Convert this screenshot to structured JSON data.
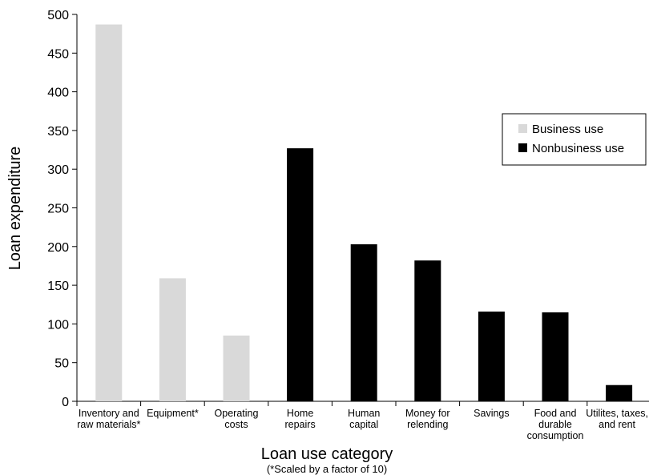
{
  "chart_data": {
    "type": "bar",
    "categories": [
      [
        "Inventory and",
        "raw materials*"
      ],
      [
        "Equipment*"
      ],
      [
        "Operating",
        "costs"
      ],
      [
        "Home",
        "repairs"
      ],
      [
        "Human",
        "capital"
      ],
      [
        "Money for",
        "relending"
      ],
      [
        "Savings"
      ],
      [
        "Food and",
        "durable",
        "consumption"
      ],
      [
        "Utilites, taxes,",
        "and rent"
      ]
    ],
    "values": [
      487,
      159,
      85,
      327,
      203,
      182,
      116,
      115,
      21
    ],
    "groups": [
      "Business use",
      "Business use",
      "Business use",
      "Nonbusiness use",
      "Nonbusiness use",
      "Nonbusiness use",
      "Nonbusiness use",
      "Nonbusiness use",
      "Nonbusiness use"
    ],
    "series_colors": {
      "Business use": "#d9d9d9",
      "Nonbusiness use": "#000000"
    },
    "xlabel": "Loan use category",
    "xlabel_note": "(*Scaled by a factor of 10)",
    "ylabel": "Loan expenditure",
    "ylim": [
      0,
      500
    ],
    "yticks": [
      0,
      50,
      100,
      150,
      200,
      250,
      300,
      350,
      400,
      450,
      500
    ],
    "grid": false,
    "legend": {
      "placement": "right",
      "entries": [
        {
          "label": "Business use",
          "color": "#d9d9d9"
        },
        {
          "label": "Nonbusiness use",
          "color": "#000000"
        }
      ]
    }
  }
}
